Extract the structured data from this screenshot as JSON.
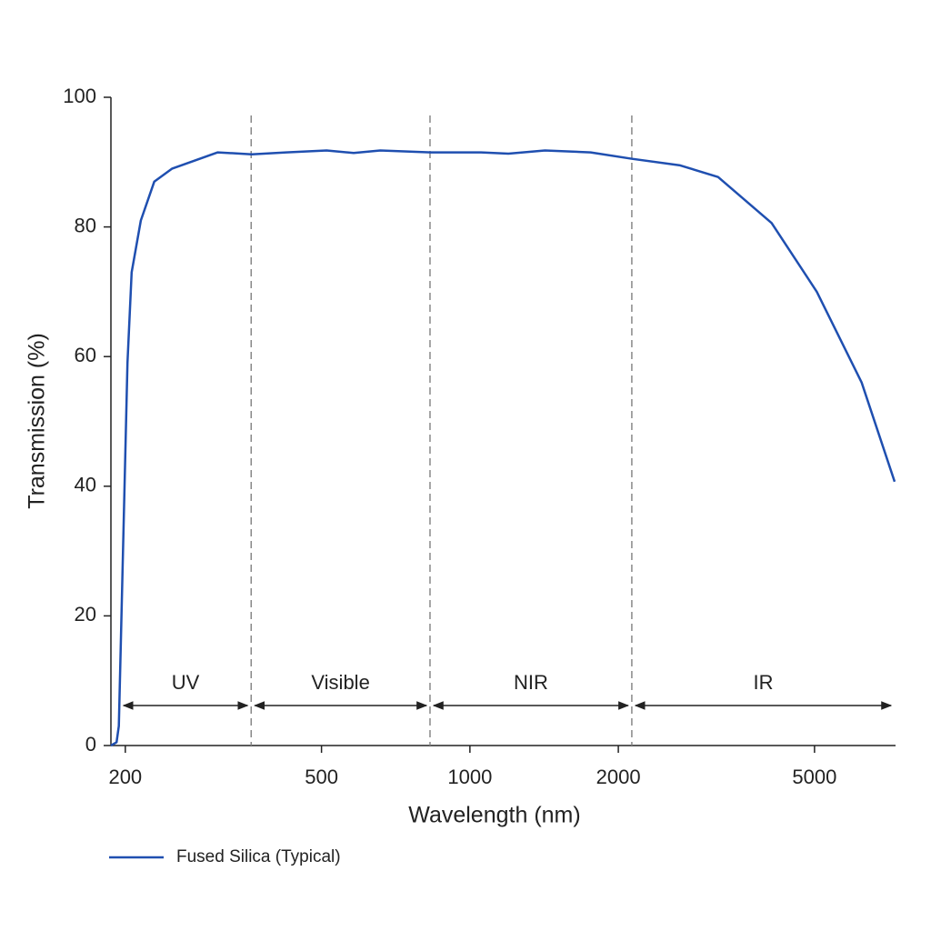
{
  "chart_data": {
    "type": "line",
    "x_label": "Wavelength (nm)",
    "y_label": "Transmission (%)",
    "x_scale": "log",
    "xlim": [
      187,
      7300
    ],
    "xticks": [
      200,
      500,
      1000,
      2000,
      5000
    ],
    "ylim": [
      0,
      100
    ],
    "yticks": [
      0,
      20,
      40,
      60,
      80,
      100
    ],
    "x": [
      187,
      192,
      194,
      196,
      202,
      206,
      215,
      229,
      249,
      271,
      308,
      361,
      424,
      512,
      581,
      658,
      833,
      1054,
      1197,
      1420,
      1757,
      2133,
      2670,
      3187,
      4093,
      5054,
      6232,
      7270
    ],
    "series": [
      {
        "name": "Fused Silica (Typical)",
        "color": "#1f4fb0",
        "values": [
          0,
          0.5,
          3,
          17,
          59,
          73,
          81,
          87,
          89,
          90,
          91.5,
          91.2,
          91.5,
          91.8,
          91.4,
          91.8,
          91.5,
          91.5,
          91.3,
          91.8,
          91.5,
          90.5,
          89.5,
          87.7,
          80.6,
          70,
          56,
          40.7
        ]
      }
    ],
    "regions": [
      {
        "label": "UV",
        "start": 195,
        "end": 360
      },
      {
        "label": "Visible",
        "start": 360,
        "end": 830
      },
      {
        "label": "NIR",
        "start": 830,
        "end": 2130
      },
      {
        "label": "IR",
        "start": 2130,
        "end": 7270
      }
    ],
    "legend": "bottom-left"
  }
}
